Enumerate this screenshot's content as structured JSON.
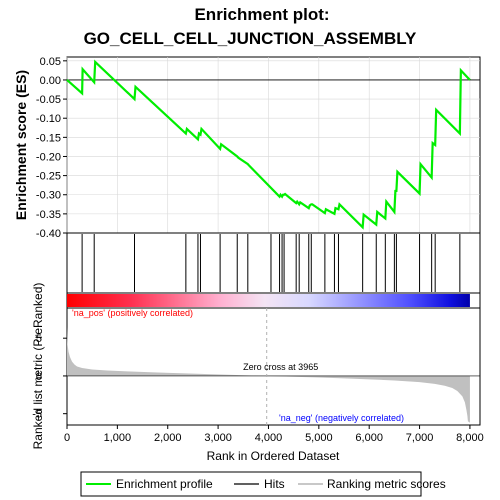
{
  "chart_data": {
    "type": "line",
    "title_line1": "Enrichment plot:",
    "title_line2": "GO_CELL_CELL_JUNCTION_ASSEMBLY",
    "es_ylabel": "Enrichment score (ES)",
    "rank_ylabel": "Ranked list metric (PreRanked)",
    "xlabel": "Rank in Ordered Dataset",
    "xlim": [
      0,
      8200
    ],
    "x_ticks": [
      0,
      1000,
      2000,
      3000,
      4000,
      5000,
      6000,
      7000,
      8000
    ],
    "x_tick_labels": [
      "0",
      "1,000",
      "2,000",
      "3,000",
      "4,000",
      "5,000",
      "6,000",
      "7,000",
      "8,000"
    ],
    "es_ylim": [
      -0.4,
      0.06
    ],
    "es_ticks": [
      -0.4,
      -0.35,
      -0.3,
      -0.25,
      -0.2,
      -0.15,
      -0.1,
      -0.05,
      0.0,
      0.05
    ],
    "es_tick_labels": [
      "-0.40",
      "-0.35",
      "-0.30",
      "-0.25",
      "-0.20",
      "-0.15",
      "-0.10",
      "-0.05",
      "0.00",
      "0.05"
    ],
    "rank_ylim": [
      -6.5,
      9
    ],
    "rank_ticks": [
      -5,
      0,
      5
    ],
    "rank_tick_labels": [
      "-5",
      "0",
      "5"
    ],
    "enrichment_profile": {
      "name": "Enrichment profile",
      "color": "#00ee00",
      "x": [
        0,
        300,
        310,
        540,
        560,
        1340,
        1360,
        2360,
        2380,
        2600,
        2620,
        2650,
        2670,
        3040,
        3060,
        3380,
        3400,
        3590,
        3610,
        4220,
        4240,
        4270,
        4290,
        4310,
        4330,
        4550,
        4570,
        4610,
        4630,
        4800,
        4820,
        4850,
        4870,
        5120,
        5140,
        5310,
        5330,
        5390,
        5410,
        5870,
        5890,
        6140,
        6160,
        6320,
        6340,
        6500,
        6520,
        6540,
        6560,
        7000,
        7020,
        7240,
        7260,
        7310,
        7330,
        7800,
        7820,
        8000
      ],
      "y": [
        0.0,
        -0.035,
        0.028,
        -0.006,
        0.047,
        -0.05,
        -0.018,
        -0.14,
        -0.128,
        -0.155,
        -0.14,
        -0.143,
        -0.128,
        -0.18,
        -0.168,
        -0.2,
        -0.203,
        -0.22,
        -0.223,
        -0.305,
        -0.3,
        -0.305,
        -0.3,
        -0.3,
        -0.298,
        -0.322,
        -0.318,
        -0.325,
        -0.32,
        -0.335,
        -0.328,
        -0.325,
        -0.325,
        -0.348,
        -0.338,
        -0.35,
        -0.335,
        -0.338,
        -0.325,
        -0.385,
        -0.352,
        -0.378,
        -0.345,
        -0.362,
        -0.318,
        -0.345,
        -0.29,
        -0.29,
        -0.24,
        -0.297,
        -0.22,
        -0.255,
        -0.165,
        -0.17,
        -0.078,
        -0.14,
        0.025,
        0.0
      ]
    },
    "hits": {
      "name": "Hits",
      "x": [
        300,
        540,
        1340,
        2360,
        2600,
        2650,
        3040,
        3380,
        3590,
        4050,
        4220,
        4270,
        4310,
        4550,
        4610,
        4800,
        4850,
        5120,
        5310,
        5390,
        5870,
        6140,
        6320,
        6500,
        6540,
        7000,
        7240,
        7310,
        7800
      ]
    },
    "ranking_metric": {
      "name": "Ranking metric scores",
      "x": [
        0,
        10,
        30,
        60,
        100,
        150,
        200,
        300,
        500,
        800,
        1200,
        1800,
        2500,
        3200,
        3965,
        4500,
        5000,
        5500,
        6000,
        6500,
        7000,
        7300,
        7500,
        7650,
        7750,
        7850,
        7900,
        7930,
        7950,
        7960,
        8000
      ],
      "y": [
        6.5,
        4.2,
        3.2,
        2.5,
        1.9,
        1.5,
        1.25,
        1.05,
        0.85,
        0.72,
        0.6,
        0.45,
        0.3,
        0.15,
        0.0,
        -0.1,
        -0.2,
        -0.32,
        -0.45,
        -0.6,
        -0.82,
        -1.05,
        -1.3,
        -1.6,
        -2.0,
        -2.7,
        -3.5,
        -4.5,
        -5.3,
        -6.0,
        -6.2
      ]
    },
    "zero_cross_label": "Zero cross at 3965",
    "zero_cross_x": 3965,
    "pos_label": "'na_pos' (positively correlated)",
    "neg_label": "'na_neg' (negatively correlated)",
    "colors": {
      "profile": "#00ee00",
      "hits": "#000000",
      "metric_fill": "#c0c0c0",
      "pos_text": "#ff0000",
      "neg_text": "#0000ff",
      "zero_line": "#b0b0b0"
    },
    "legend_placement": "bottom"
  }
}
